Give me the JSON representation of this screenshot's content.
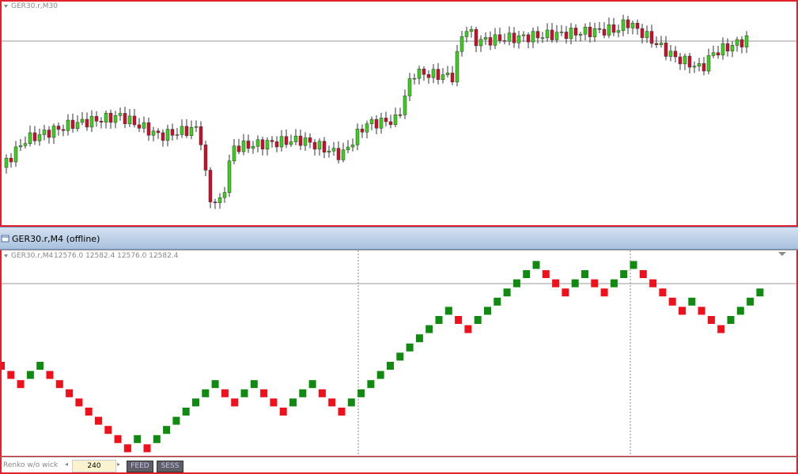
{
  "top_chart": {
    "label": "GER30.r,M30"
  },
  "window": {
    "title": "GER30.r,M4 (offline)"
  },
  "bottom_chart": {
    "label": "GER30.r,M4",
    "ohlc": "12576.0 12582.4 12576.0 12582.4"
  },
  "status_bar": {
    "indicator": "Renko w/o wick",
    "box_size": 240,
    "buttons": [
      "FEED",
      "SESS"
    ]
  }
}
